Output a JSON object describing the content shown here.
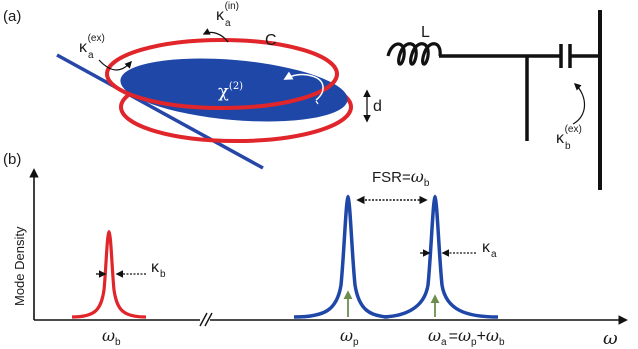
{
  "panel_a": {
    "label": "(a)",
    "kappa_a_ex": {
      "base": "κ",
      "sub": "a",
      "sup": "(ex)"
    },
    "kappa_a_in": {
      "base": "κ",
      "sub": "a",
      "sup": "(in)"
    },
    "capacitor_label": "C",
    "inductor_label": "L",
    "chi2": {
      "base": "χ",
      "sup": "(2)"
    },
    "gap_label": "d",
    "kappa_b_ex": {
      "base": "κ",
      "sub": "b",
      "sup": "(ex)"
    }
  },
  "panel_b": {
    "label": "(b)",
    "ylabel": "Mode Density",
    "xlabel": "ω",
    "fsr": {
      "prefix": "FSR=",
      "omega": "ω",
      "sub": "b"
    },
    "kappa_a": {
      "base": "κ",
      "sub": "a"
    },
    "kappa_b": {
      "base": "κ",
      "sub": "b"
    },
    "tick_omega_b": {
      "omega": "ω",
      "sub": "b"
    },
    "tick_omega_p": {
      "omega": "ω",
      "sub": "p"
    },
    "tick_omega_a": {
      "a": "ω",
      "a_sub": "a",
      "eq": "=",
      "p": "ω",
      "p_sub": "p",
      "plus": "+",
      "b": "ω",
      "b_sub": "b"
    }
  },
  "colors": {
    "ring": "#e0252b",
    "disk": "#1f47a8",
    "blue_line": "#2646a8",
    "wire": "#111111",
    "pump_arrow": "#6b8e4e",
    "text": "#1a1a1a"
  }
}
